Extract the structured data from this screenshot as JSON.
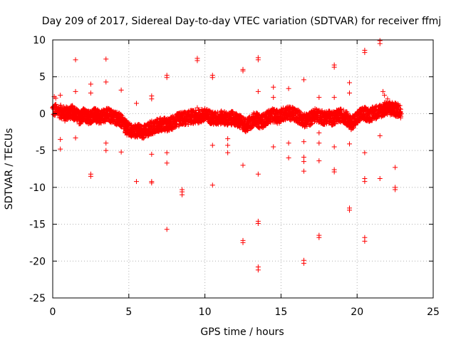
{
  "chart_data": {
    "type": "scatter",
    "title": "Day 209 of 2017, Sidereal Day-to-day VTEC variation (SDTVAR) for receiver ffmj",
    "xlabel": "GPS time / hours",
    "ylabel": "SDTVAR / TECUs",
    "xlim": [
      0,
      25
    ],
    "ylim": [
      -25,
      10
    ],
    "xticks": [
      0,
      5,
      10,
      15,
      20,
      25
    ],
    "yticks": [
      -25,
      -20,
      -15,
      -10,
      -5,
      0,
      5,
      10
    ],
    "grid": true,
    "marker": "+",
    "color": "#ff0000",
    "band": [
      [
        0.0,
        0.5
      ],
      [
        0.5,
        0.3
      ],
      [
        0.8,
        0.0
      ],
      [
        1.0,
        0.1
      ],
      [
        1.3,
        0.2
      ],
      [
        1.5,
        -0.1
      ],
      [
        1.8,
        -0.6
      ],
      [
        2.0,
        -0.2
      ],
      [
        2.3,
        -0.5
      ],
      [
        2.5,
        -0.4
      ],
      [
        2.8,
        -0.1
      ],
      [
        3.0,
        -0.5
      ],
      [
        3.3,
        -0.3
      ],
      [
        3.6,
        -0.1
      ],
      [
        3.9,
        -0.4
      ],
      [
        4.2,
        -0.6
      ],
      [
        4.5,
        -1.0
      ],
      [
        4.8,
        -1.8
      ],
      [
        5.0,
        -2.2
      ],
      [
        5.3,
        -2.4
      ],
      [
        5.6,
        -2.3
      ],
      [
        5.9,
        -2.5
      ],
      [
        6.2,
        -2.2
      ],
      [
        6.5,
        -1.9
      ],
      [
        6.8,
        -1.7
      ],
      [
        7.0,
        -1.5
      ],
      [
        7.3,
        -1.4
      ],
      [
        7.6,
        -1.6
      ],
      [
        7.9,
        -1.2
      ],
      [
        8.2,
        -0.9
      ],
      [
        8.5,
        -0.6
      ],
      [
        8.8,
        -0.7
      ],
      [
        9.1,
        -0.4
      ],
      [
        9.4,
        -0.5
      ],
      [
        9.7,
        -0.3
      ],
      [
        10.0,
        -0.2
      ],
      [
        10.3,
        -0.4
      ],
      [
        10.6,
        -0.7
      ],
      [
        10.9,
        -0.6
      ],
      [
        11.2,
        -0.5
      ],
      [
        11.5,
        -0.8
      ],
      [
        11.8,
        -0.6
      ],
      [
        12.1,
        -0.9
      ],
      [
        12.4,
        -1.2
      ],
      [
        12.7,
        -1.6
      ],
      [
        13.0,
        -1.2
      ],
      [
        13.3,
        -0.6
      ],
      [
        13.6,
        -1.1
      ],
      [
        13.9,
        -0.9
      ],
      [
        14.2,
        -0.4
      ],
      [
        14.5,
        -0.2
      ],
      [
        14.8,
        -0.5
      ],
      [
        15.1,
        -0.1
      ],
      [
        15.4,
        0.1
      ],
      [
        15.7,
        0.0
      ],
      [
        16.0,
        -0.2
      ],
      [
        16.3,
        -0.6
      ],
      [
        16.6,
        -1.0
      ],
      [
        16.9,
        -0.7
      ],
      [
        17.2,
        -0.2
      ],
      [
        17.5,
        -0.3
      ],
      [
        17.8,
        -0.6
      ],
      [
        18.1,
        -0.4
      ],
      [
        18.4,
        -0.7
      ],
      [
        18.7,
        -0.4
      ],
      [
        19.0,
        -0.2
      ],
      [
        19.3,
        -0.6
      ],
      [
        19.6,
        -1.3
      ],
      [
        19.9,
        -0.8
      ],
      [
        20.2,
        -0.2
      ],
      [
        20.5,
        0.0
      ],
      [
        20.8,
        -0.2
      ],
      [
        21.1,
        0.1
      ],
      [
        21.4,
        0.3
      ],
      [
        21.7,
        0.5
      ],
      [
        22.0,
        0.8
      ],
      [
        22.3,
        0.6
      ],
      [
        22.6,
        0.5
      ],
      [
        22.9,
        0.3
      ]
    ],
    "band_spread": 0.9,
    "outliers": [
      [
        0.1,
        2.3
      ],
      [
        0.2,
        2.1
      ],
      [
        0.5,
        2.5
      ],
      [
        0.8,
        -1.0
      ],
      [
        0.8,
        -0.5
      ],
      [
        0.5,
        -3.5
      ],
      [
        0.5,
        -4.8
      ],
      [
        1.5,
        7.3
      ],
      [
        1.5,
        3.0
      ],
      [
        1.5,
        -3.3
      ],
      [
        2.5,
        4.0
      ],
      [
        2.5,
        2.8
      ],
      [
        2.5,
        -8.2
      ],
      [
        2.5,
        -8.5
      ],
      [
        3.5,
        7.4
      ],
      [
        3.5,
        4.3
      ],
      [
        3.5,
        -4.0
      ],
      [
        3.5,
        -5.0
      ],
      [
        4.5,
        3.2
      ],
      [
        4.5,
        -5.2
      ],
      [
        5.5,
        1.4
      ],
      [
        5.5,
        -9.2
      ],
      [
        6.5,
        2.4
      ],
      [
        6.5,
        2.0
      ],
      [
        6.5,
        -5.5
      ],
      [
        6.5,
        -9.2
      ],
      [
        6.5,
        -9.4
      ],
      [
        7.5,
        5.2
      ],
      [
        7.5,
        4.9
      ],
      [
        7.5,
        -5.3
      ],
      [
        7.5,
        -6.7
      ],
      [
        7.5,
        -15.7
      ],
      [
        8.5,
        -10.3
      ],
      [
        8.5,
        -10.6
      ],
      [
        8.5,
        -11.0
      ],
      [
        9.5,
        7.5
      ],
      [
        9.5,
        7.2
      ],
      [
        9.5,
        0.8
      ],
      [
        10.5,
        5.2
      ],
      [
        10.5,
        4.9
      ],
      [
        10.5,
        -4.3
      ],
      [
        10.5,
        -9.7
      ],
      [
        11.5,
        -3.4
      ],
      [
        11.5,
        -4.3
      ],
      [
        11.5,
        -5.3
      ],
      [
        12.5,
        6.0
      ],
      [
        12.5,
        5.8
      ],
      [
        12.5,
        -7.0
      ],
      [
        12.5,
        -17.2
      ],
      [
        12.5,
        -17.5
      ],
      [
        13.5,
        7.6
      ],
      [
        13.5,
        7.3
      ],
      [
        13.5,
        3.0
      ],
      [
        13.5,
        -8.2
      ],
      [
        13.5,
        -14.6
      ],
      [
        13.5,
        -14.9
      ],
      [
        13.5,
        -20.8
      ],
      [
        13.5,
        -21.2
      ],
      [
        14.5,
        3.6
      ],
      [
        14.5,
        2.2
      ],
      [
        14.5,
        -4.5
      ],
      [
        15.5,
        3.4
      ],
      [
        15.5,
        -4.0
      ],
      [
        15.5,
        -6.0
      ],
      [
        16.5,
        4.6
      ],
      [
        16.5,
        -3.8
      ],
      [
        16.5,
        -5.9
      ],
      [
        16.5,
        -6.5
      ],
      [
        16.5,
        -7.8
      ],
      [
        16.5,
        -19.9
      ],
      [
        16.5,
        -20.3
      ],
      [
        17.5,
        2.2
      ],
      [
        17.5,
        -2.6
      ],
      [
        17.5,
        -4.0
      ],
      [
        17.5,
        -6.4
      ],
      [
        17.5,
        -16.5
      ],
      [
        17.5,
        -16.8
      ],
      [
        18.5,
        6.6
      ],
      [
        18.5,
        6.3
      ],
      [
        18.5,
        2.2
      ],
      [
        18.5,
        -4.5
      ],
      [
        18.5,
        -7.6
      ],
      [
        18.5,
        -7.9
      ],
      [
        19.5,
        4.2
      ],
      [
        19.5,
        2.8
      ],
      [
        19.5,
        -4.1
      ],
      [
        19.5,
        -12.8
      ],
      [
        19.5,
        -13.1
      ],
      [
        20.5,
        8.6
      ],
      [
        20.5,
        8.3
      ],
      [
        20.5,
        -5.3
      ],
      [
        20.5,
        -8.8
      ],
      [
        20.5,
        -9.2
      ],
      [
        20.5,
        -16.8
      ],
      [
        20.5,
        -17.3
      ],
      [
        21.5,
        9.9
      ],
      [
        21.5,
        9.5
      ],
      [
        21.5,
        -3.0
      ],
      [
        21.5,
        -8.8
      ],
      [
        21.7,
        3.0
      ],
      [
        21.8,
        2.5
      ],
      [
        22.0,
        2.0
      ],
      [
        22.3,
        1.5
      ],
      [
        22.5,
        1.0
      ],
      [
        22.5,
        -7.3
      ],
      [
        22.5,
        -10.0
      ],
      [
        22.5,
        -10.3
      ]
    ]
  }
}
